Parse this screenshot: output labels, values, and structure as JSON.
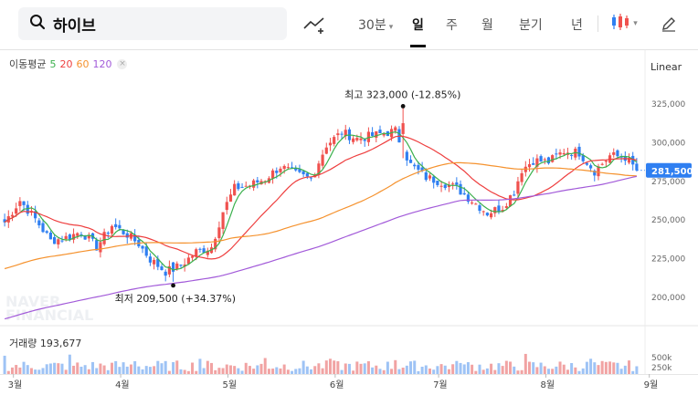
{
  "search": {
    "query": "하이브"
  },
  "toolbar": {
    "interval": "30분",
    "periods": [
      "일",
      "주",
      "월",
      "분기",
      "년"
    ],
    "active_period": "일"
  },
  "ma_legend": {
    "title": "이동평균",
    "periods": [
      "5",
      "20",
      "60",
      "120"
    ]
  },
  "scale": "Linear",
  "colors": {
    "up": "#f0514e",
    "down": "#2f7ff1",
    "ma5": "#3bb04d",
    "ma20": "#ee3e3e",
    "ma60": "#f5922e",
    "ma120": "#a25ad9",
    "volume_up": "#f1a3a3",
    "volume_down": "#9ec3f5"
  },
  "price_axis": {
    "ticks": [
      "325,000",
      "300,000",
      "275,000",
      "250,000",
      "225,000",
      "200,000"
    ]
  },
  "volume_axis": {
    "ticks": [
      "500k",
      "250k"
    ]
  },
  "x_axis": {
    "ticks": [
      "3월",
      "4월",
      "5월",
      "6월",
      "7월",
      "8월",
      "9월"
    ]
  },
  "high_annotation": {
    "label": "최고",
    "value": "323,000 (-12.85%)"
  },
  "low_annotation": {
    "label": "최저",
    "value": "209,500 (+34.37%)"
  },
  "current_price": "281,500",
  "volume": {
    "label": "거래량",
    "value": "193,677"
  },
  "watermark": "NAVER FINANCIAL",
  "chart_data": {
    "type": "candlestick",
    "title": "",
    "xlabel": "",
    "ylabel": "",
    "ylim": [
      190000,
      337000
    ],
    "months": [
      "3월",
      "4월",
      "5월",
      "6월",
      "7월",
      "8월",
      "9월"
    ],
    "high": 323000,
    "low": 209500,
    "last_close": 281500,
    "last_volume": 193677,
    "close_path": [
      [
        0,
        248000
      ],
      [
        4,
        262000
      ],
      [
        8,
        250000
      ],
      [
        12,
        236000
      ],
      [
        16,
        238000
      ],
      [
        20,
        242000
      ],
      [
        24,
        232000
      ],
      [
        28,
        246000
      ],
      [
        32,
        240000
      ],
      [
        35,
        234000
      ],
      [
        38,
        224000
      ],
      [
        42,
        216000
      ],
      [
        46,
        220000
      ],
      [
        50,
        229000
      ],
      [
        54,
        232000
      ],
      [
        57,
        255000
      ],
      [
        60,
        270000
      ],
      [
        64,
        272000
      ],
      [
        68,
        276000
      ],
      [
        72,
        284000
      ],
      [
        76,
        279000
      ],
      [
        80,
        276000
      ],
      [
        84,
        298000
      ],
      [
        88,
        306000
      ],
      [
        92,
        302000
      ],
      [
        96,
        304000
      ],
      [
        100,
        306000
      ],
      [
        102,
        307000
      ],
      [
        104,
        295000
      ],
      [
        106,
        285000
      ],
      [
        110,
        277000
      ],
      [
        114,
        274000
      ],
      [
        118,
        270000
      ],
      [
        122,
        262000
      ],
      [
        126,
        254000
      ],
      [
        130,
        258000
      ],
      [
        133,
        268000
      ],
      [
        135,
        282000
      ],
      [
        138,
        288000
      ],
      [
        142,
        287000
      ],
      [
        146,
        294000
      ],
      [
        150,
        293000
      ],
      [
        154,
        281000
      ],
      [
        158,
        291000
      ],
      [
        162,
        290000
      ],
      [
        165,
        281500
      ]
    ],
    "ma_endpoints": {
      "ma5": 285000,
      "ma20": 286000,
      "ma60": 282000,
      "ma120": 272000
    }
  }
}
